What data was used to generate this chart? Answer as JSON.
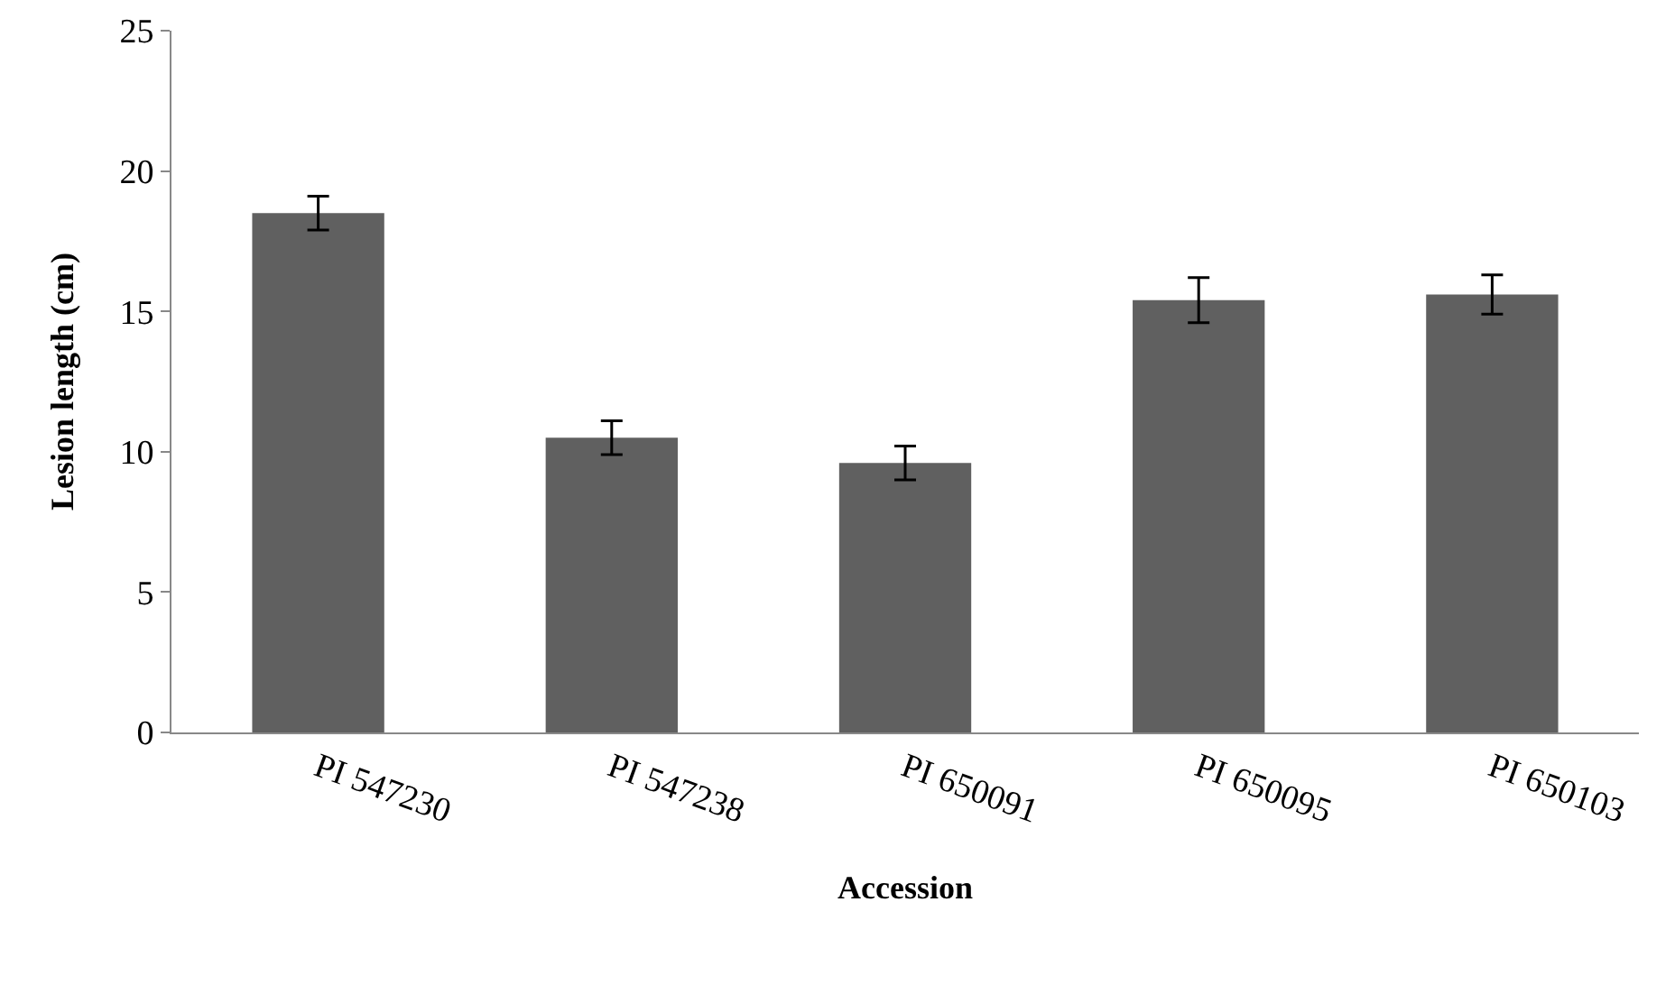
{
  "chart_data": {
    "type": "bar",
    "xlabel": "Accession",
    "ylabel": "Lesion length (cm)",
    "categories": [
      "PI 547230",
      "PI 547238",
      "PI 650091",
      "PI 650095",
      "PI 650103"
    ],
    "values": [
      18.5,
      10.5,
      9.6,
      15.4,
      15.6
    ],
    "errors": [
      0.6,
      0.6,
      0.6,
      0.8,
      0.7
    ],
    "color": "#606060",
    "ylim": [
      0,
      25
    ],
    "yticks": [
      0,
      5,
      10,
      15,
      20,
      25
    ],
    "grid": false,
    "legend": false
  }
}
